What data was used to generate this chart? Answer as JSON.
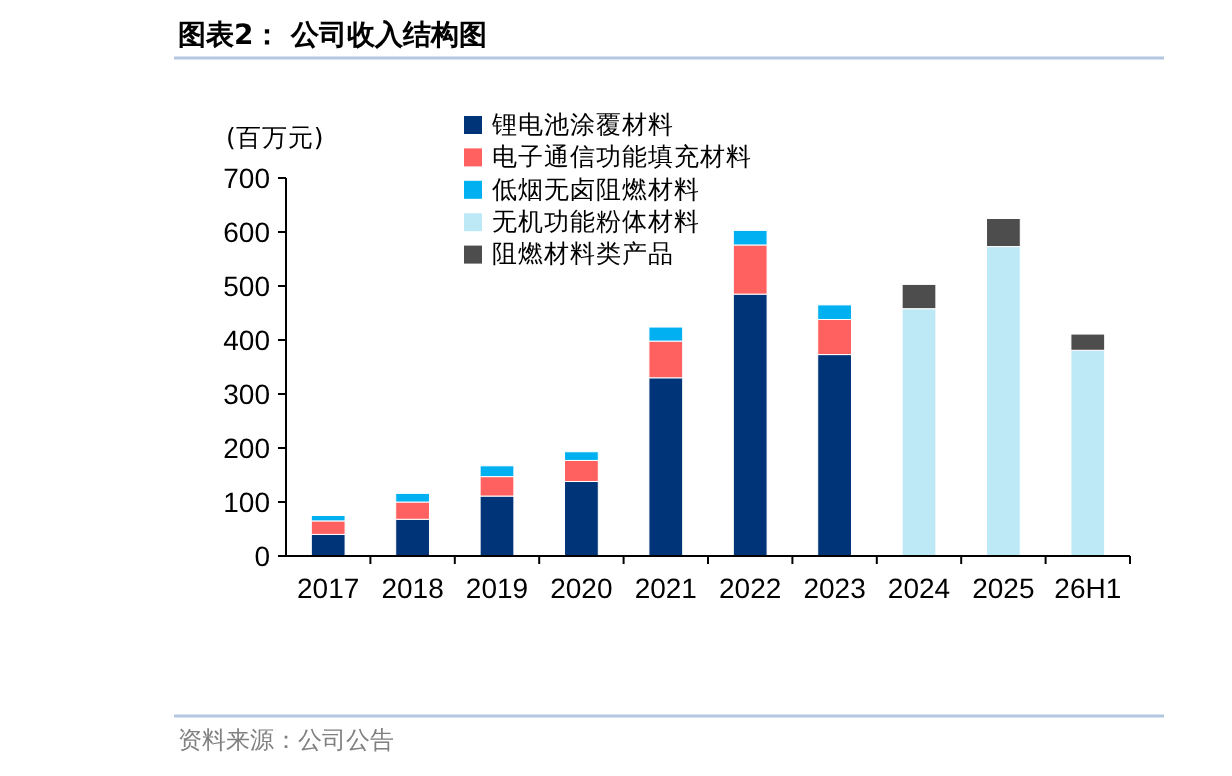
{
  "chart_data": {
    "type": "bar",
    "title": "图表2：  公司收入结构图",
    "ylabel": "(百万元)",
    "stacked": true,
    "legend": "top",
    "categories": [
      "2017",
      "2018",
      "2019",
      "2020",
      "2021",
      "2022",
      "2023",
      "2024",
      "2025",
      "26H1"
    ],
    "series": [
      {
        "name": "锂电池涂覆材料",
        "color": "#003478",
        "values": [
          40,
          68,
          111,
          138,
          330,
          485,
          373,
          null,
          null,
          null
        ]
      },
      {
        "name": "电子通信功能填充材料",
        "color": "#ff6161",
        "values": [
          25,
          32,
          36,
          39,
          68,
          91,
          65,
          null,
          null,
          null
        ]
      },
      {
        "name": "低烟无卤阻燃材料",
        "color": "#00b0f0",
        "values": [
          10,
          16,
          20,
          16,
          26,
          27,
          27,
          null,
          null,
          null
        ]
      },
      {
        "name": "无机功能粉体材料",
        "color": "#bde9f7",
        "values": [
          null,
          null,
          null,
          null,
          null,
          null,
          null,
          458,
          573,
          381
        ]
      },
      {
        "name": "阻燃材料类产品",
        "color": "#4d4d4d",
        "values": [
          null,
          null,
          null,
          null,
          null,
          null,
          null,
          45,
          52,
          30
        ]
      }
    ],
    "ylim": [
      0,
      700
    ],
    "yticks": [
      0,
      100,
      200,
      300,
      400,
      500,
      600,
      700
    ],
    "annotations": [
      "资料来源：公司公告"
    ]
  }
}
